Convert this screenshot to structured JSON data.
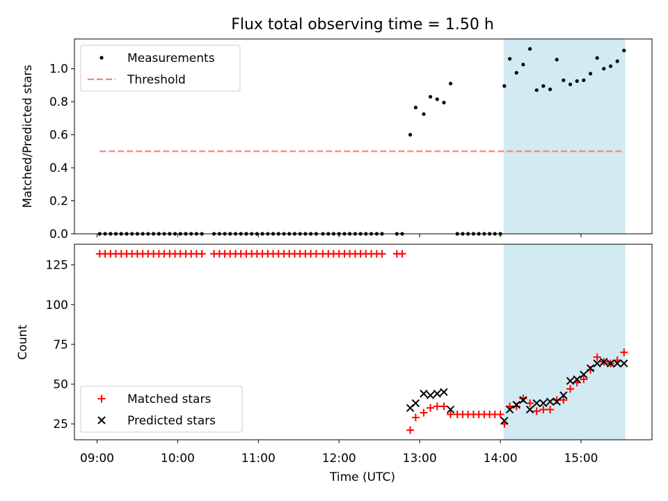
{
  "chart_data": {
    "title": "Flux total observing time = 1.50 h",
    "xlabel": "Time (UTC)",
    "x_ticks": [
      "09:00",
      "10:00",
      "11:00",
      "12:00",
      "13:00",
      "14:00",
      "15:00"
    ],
    "x_unit": "hours UTC",
    "xlim": [
      8.72,
      15.88
    ],
    "highlight_span": [
      14.04,
      15.55
    ],
    "highlight_color": "#add8e6",
    "panels": [
      {
        "type": "scatter",
        "ylabel": "Matched/Predicted stars",
        "ylim": [
          0,
          1.18
        ],
        "yticks": [
          "0.0",
          "0.2",
          "0.4",
          "0.6",
          "0.8",
          "1.0"
        ],
        "legend_position": "upper-left",
        "series": [
          {
            "name": "Measurements",
            "marker": "dot",
            "color": "#000000",
            "x": [
              9.033,
              9.1,
              9.167,
              9.233,
              9.3,
              9.367,
              9.433,
              9.5,
              9.567,
              9.633,
              9.7,
              9.767,
              9.833,
              9.9,
              9.967,
              10.033,
              10.1,
              10.167,
              10.233,
              10.3,
              10.45,
              10.517,
              10.583,
              10.65,
              10.717,
              10.783,
              10.85,
              10.917,
              10.983,
              11.05,
              11.117,
              11.183,
              11.25,
              11.317,
              11.383,
              11.45,
              11.517,
              11.583,
              11.65,
              11.717,
              11.8,
              11.867,
              11.933,
              12.0,
              12.067,
              12.133,
              12.2,
              12.267,
              12.333,
              12.4,
              12.467,
              12.533,
              12.717,
              12.783,
              12.883,
              12.95,
              13.05,
              13.133,
              13.217,
              13.3,
              13.383,
              13.467,
              13.533,
              13.6,
              13.667,
              13.733,
              13.8,
              13.867,
              13.933,
              14.0,
              14.05,
              14.117,
              14.2,
              14.283,
              14.367,
              14.45,
              14.533,
              14.617,
              14.7,
              14.783,
              14.867,
              14.95,
              15.033,
              15.117,
              15.2,
              15.283,
              15.367,
              15.45,
              15.533
            ],
            "y": [
              0,
              0,
              0,
              0,
              0,
              0,
              0,
              0,
              0,
              0,
              0,
              0,
              0,
              0,
              0,
              0,
              0,
              0,
              0,
              0,
              0,
              0,
              0,
              0,
              0,
              0,
              0,
              0,
              0,
              0,
              0,
              0,
              0,
              0,
              0,
              0,
              0,
              0,
              0,
              0,
              0,
              0,
              0,
              0,
              0,
              0,
              0,
              0,
              0,
              0,
              0,
              0,
              0,
              0,
              0.6,
              0.765,
              0.725,
              0.83,
              0.815,
              0.795,
              0.91,
              0,
              0,
              0,
              0,
              0,
              0,
              0,
              0,
              0,
              0.895,
              1.06,
              0.975,
              1.025,
              1.12,
              0.87,
              0.895,
              0.875,
              1.055,
              0.93,
              0.905,
              0.925,
              0.93,
              0.97,
              1.065,
              1.0,
              1.015,
              1.045,
              1.11
            ]
          },
          {
            "name": "Threshold",
            "marker": "dashed-line",
            "color": "#ff7f7f",
            "x": [
              9.033,
              15.533
            ],
            "y": [
              0.5,
              0.5
            ]
          }
        ]
      },
      {
        "type": "scatter",
        "ylabel": "Count",
        "ylim": [
          15,
          138
        ],
        "yticks": [
          "25",
          "50",
          "75",
          "100",
          "125"
        ],
        "legend_position": "lower-left",
        "series": [
          {
            "name": "Matched stars",
            "marker": "plus",
            "color": "#ff0000",
            "x": [
              9.033,
              9.1,
              9.167,
              9.233,
              9.3,
              9.367,
              9.433,
              9.5,
              9.567,
              9.633,
              9.7,
              9.767,
              9.833,
              9.9,
              9.967,
              10.033,
              10.1,
              10.167,
              10.233,
              10.3,
              10.45,
              10.517,
              10.583,
              10.65,
              10.717,
              10.783,
              10.85,
              10.917,
              10.983,
              11.05,
              11.117,
              11.183,
              11.25,
              11.317,
              11.383,
              11.45,
              11.517,
              11.583,
              11.65,
              11.717,
              11.8,
              11.867,
              11.933,
              12.0,
              12.067,
              12.133,
              12.2,
              12.267,
              12.333,
              12.4,
              12.467,
              12.533,
              12.717,
              12.783,
              12.883,
              12.95,
              13.05,
              13.133,
              13.217,
              13.3,
              13.383,
              13.467,
              13.533,
              13.6,
              13.667,
              13.733,
              13.8,
              13.867,
              13.933,
              14.0,
              14.05,
              14.117,
              14.2,
              14.283,
              14.367,
              14.45,
              14.533,
              14.617,
              14.7,
              14.783,
              14.867,
              14.95,
              15.033,
              15.117,
              15.2,
              15.283,
              15.367,
              15.45,
              15.533
            ],
            "y": [
              132,
              132,
              132,
              132,
              132,
              132,
              132,
              132,
              132,
              132,
              132,
              132,
              132,
              132,
              132,
              132,
              132,
              132,
              132,
              132,
              132,
              132,
              132,
              132,
              132,
              132,
              132,
              132,
              132,
              132,
              132,
              132,
              132,
              132,
              132,
              132,
              132,
              132,
              132,
              132,
              132,
              132,
              132,
              132,
              132,
              132,
              132,
              132,
              132,
              132,
              132,
              132,
              132,
              132,
              21,
              29,
              32,
              35,
              36,
              36,
              31,
              31,
              31,
              31,
              31,
              31,
              31,
              31,
              31,
              31,
              25,
              36,
              36,
              41,
              38,
              33,
              34,
              34,
              40,
              40,
              47,
              51,
              53,
              59,
              67,
              64,
              63,
              65,
              70
            ]
          },
          {
            "name": "Predicted stars",
            "marker": "x",
            "color": "#000000",
            "x": [
              12.883,
              12.95,
              13.05,
              13.133,
              13.217,
              13.3,
              13.383,
              14.05,
              14.117,
              14.2,
              14.283,
              14.367,
              14.45,
              14.533,
              14.617,
              14.7,
              14.783,
              14.867,
              14.95,
              15.033,
              15.117,
              15.2,
              15.283,
              15.367,
              15.45,
              15.533
            ],
            "y": [
              35,
              38,
              44,
              43,
              44,
              45,
              34,
              27,
              34,
              37,
              40,
              34,
              38,
              38,
              39,
              39,
              43,
              52,
              53,
              56,
              60,
              63,
              64,
              63,
              63,
              63
            ]
          }
        ]
      }
    ]
  }
}
